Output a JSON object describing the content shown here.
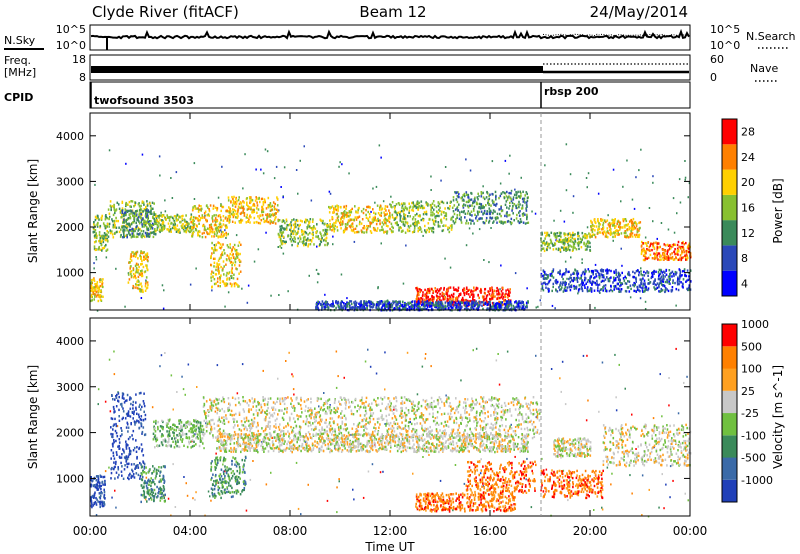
{
  "header": {
    "station": "Clyde River (fitACF)",
    "beam": "Beam 12",
    "date": "24/May/2014"
  },
  "nsky_panel": {
    "label": "N.Sky",
    "ticks_left": [
      "10^5",
      "10^0"
    ],
    "ticks_right": [
      "10^5",
      "10^0"
    ],
    "right_label": "N.Search"
  },
  "freq_panel": {
    "label_line1": "Freq.",
    "label_line2": "[MHz]",
    "ticks_left": [
      "18",
      "8"
    ],
    "ticks_right": [
      "60",
      "0"
    ],
    "right_label": "Nave"
  },
  "cpid_panel": {
    "label": "CPID",
    "programs": [
      {
        "name": "twofsound 3503",
        "start_hour": 0
      },
      {
        "name": "rbsp 200",
        "start_hour": 18
      }
    ]
  },
  "chart_data": [
    {
      "type": "heatmap",
      "title": "",
      "xlabel": "",
      "ylabel": "Slant Range [km]",
      "x_range_hours": [
        0,
        24
      ],
      "ylim": [
        180,
        4500
      ],
      "y_ticks": [
        1000,
        2000,
        3000,
        4000
      ],
      "colorbar": {
        "label": "Power [dB]",
        "ticks": [
          "4",
          "8",
          "12",
          "16",
          "20",
          "24",
          "28"
        ],
        "colors": [
          "#0000ff",
          "#2a48b8",
          "#3a8a5a",
          "#88c030",
          "#ffd000",
          "#ff8000",
          "#ff0000"
        ]
      },
      "blobs": [
        {
          "t0": 0.0,
          "t1": 0.5,
          "r0": 400,
          "r1": 900,
          "level": 4
        },
        {
          "t0": 0.1,
          "t1": 0.7,
          "r0": 1500,
          "r1": 2300,
          "level": 3
        },
        {
          "t0": 0.7,
          "t1": 2.6,
          "r0": 1800,
          "r1": 2600,
          "level": 3
        },
        {
          "t0": 1.2,
          "t1": 2.6,
          "r0": 1800,
          "r1": 2400,
          "level": 2
        },
        {
          "t0": 1.5,
          "t1": 2.3,
          "r0": 600,
          "r1": 1500,
          "level": 4
        },
        {
          "t0": 2.6,
          "t1": 4.2,
          "r0": 1900,
          "r1": 2300,
          "level": 3
        },
        {
          "t0": 4.0,
          "t1": 5.5,
          "r0": 1800,
          "r1": 2500,
          "level": 4
        },
        {
          "t0": 4.8,
          "t1": 6.0,
          "r0": 700,
          "r1": 1700,
          "level": 4
        },
        {
          "t0": 5.5,
          "t1": 7.5,
          "r0": 2100,
          "r1": 2700,
          "level": 4
        },
        {
          "t0": 7.5,
          "t1": 9.5,
          "r0": 1600,
          "r1": 2200,
          "level": 3
        },
        {
          "t0": 9.5,
          "t1": 12.0,
          "r0": 1900,
          "r1": 2500,
          "level": 4
        },
        {
          "t0": 12.0,
          "t1": 14.5,
          "r0": 1900,
          "r1": 2600,
          "level": 3
        },
        {
          "t0": 14.5,
          "t1": 17.5,
          "r0": 2100,
          "r1": 2800,
          "level": 2
        },
        {
          "t0": 13.0,
          "t1": 16.8,
          "r0": 300,
          "r1": 700,
          "level": 6
        },
        {
          "t0": 9.0,
          "t1": 17.5,
          "r0": 200,
          "r1": 400,
          "level": 1
        },
        {
          "t0": 18.0,
          "t1": 20.0,
          "r0": 1500,
          "r1": 1900,
          "level": 3
        },
        {
          "t0": 20.0,
          "t1": 22.0,
          "r0": 1800,
          "r1": 2200,
          "level": 4
        },
        {
          "t0": 22.0,
          "t1": 24.0,
          "r0": 1300,
          "r1": 1700,
          "level": 5
        },
        {
          "t0": 18.0,
          "t1": 24.0,
          "r0": 600,
          "r1": 1100,
          "level": 1
        }
      ]
    },
    {
      "type": "heatmap",
      "title": "",
      "xlabel": "Time UT",
      "ylabel": "Slant Range [km]",
      "x_range_hours": [
        0,
        24
      ],
      "x_ticks": [
        "00:00",
        "04:00",
        "08:00",
        "12:00",
        "16:00",
        "20:00",
        "00:00"
      ],
      "ylim": [
        180,
        4500
      ],
      "y_ticks": [
        1000,
        2000,
        3000,
        4000
      ],
      "colorbar": {
        "label": "Velocity [m s^-1]",
        "ticks": [
          "1000",
          "500",
          "100",
          "25",
          "-25",
          "-100",
          "-500",
          "-1000"
        ],
        "colors": [
          "#2040b8",
          "#3a6aa8",
          "#3a8a5a",
          "#70c040",
          "#c8c8c8",
          "#ffa020",
          "#ff8000",
          "#ff0000"
        ]
      },
      "blobs": [
        {
          "t0": 0.0,
          "t1": 0.6,
          "r0": 400,
          "r1": 1100,
          "level": 0
        },
        {
          "t0": 0.8,
          "t1": 2.2,
          "r0": 1000,
          "r1": 2900,
          "level": 0
        },
        {
          "t0": 2.0,
          "t1": 3.0,
          "r0": 500,
          "r1": 1300,
          "level": 2
        },
        {
          "t0": 2.5,
          "t1": 4.5,
          "r0": 1700,
          "r1": 2300,
          "level": 3
        },
        {
          "t0": 4.5,
          "t1": 18.0,
          "r0": 1900,
          "r1": 2800,
          "level": 4
        },
        {
          "t0": 5.0,
          "t1": 17.5,
          "r0": 1600,
          "r1": 2000,
          "level": 4
        },
        {
          "t0": 4.8,
          "t1": 6.2,
          "r0": 600,
          "r1": 1500,
          "level": 2
        },
        {
          "t0": 13.0,
          "t1": 17.0,
          "r0": 300,
          "r1": 700,
          "level": 6
        },
        {
          "t0": 15.0,
          "t1": 17.8,
          "r0": 700,
          "r1": 1400,
          "level": 6
        },
        {
          "t0": 18.0,
          "t1": 20.5,
          "r0": 600,
          "r1": 1200,
          "level": 6
        },
        {
          "t0": 18.5,
          "t1": 20.0,
          "r0": 1500,
          "r1": 1900,
          "level": 4
        },
        {
          "t0": 20.5,
          "t1": 24.0,
          "r0": 1300,
          "r1": 2200,
          "level": 4
        }
      ]
    }
  ]
}
